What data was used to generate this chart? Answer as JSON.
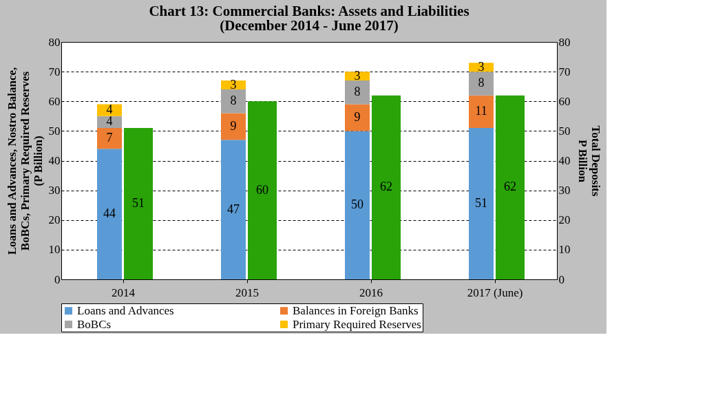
{
  "chart_data": {
    "type": "bar",
    "title": "Chart 13: Commercial Banks: Assets and Liabilities",
    "subtitle": "(December 2014 - June 2017)",
    "ylabel": "Loans and Advances, Nostro Balance,\nBoBCs, Primary Required Reserves\n(P Billion)",
    "y2label": "Total  Deposits\nP Billion",
    "categories": [
      "2014",
      "2015",
      "2016",
      "2017 (June)"
    ],
    "stacked": true,
    "series": [
      {
        "name": "Loans and Advances",
        "color": "#5b9bd5",
        "values": [
          44,
          47,
          50,
          51
        ]
      },
      {
        "name": "Balances in Foreign Banks",
        "color": "#ed7d31",
        "values": [
          7,
          9,
          9,
          11
        ]
      },
      {
        "name": "BoBCs",
        "color": "#a5a5a5",
        "values": [
          4,
          8,
          8,
          8
        ]
      },
      {
        "name": "Primary Required Reserves",
        "color": "#ffc000",
        "values": [
          4,
          3,
          3,
          3
        ]
      },
      {
        "color": "#29a308",
        "values": [
          51,
          60,
          62,
          62
        ],
        "axis": "y2"
      }
    ],
    "ylim": [
      0,
      80
    ],
    "yticks": [
      0,
      10,
      20,
      30,
      40,
      50,
      60,
      70,
      80
    ],
    "y2lim": [
      0,
      80
    ],
    "y2ticks": [
      0,
      10,
      20,
      30,
      40,
      50,
      60,
      70,
      80
    ],
    "grid": "y",
    "line_style": "dashed",
    "legend": "bottom",
    "data_labels": true
  }
}
